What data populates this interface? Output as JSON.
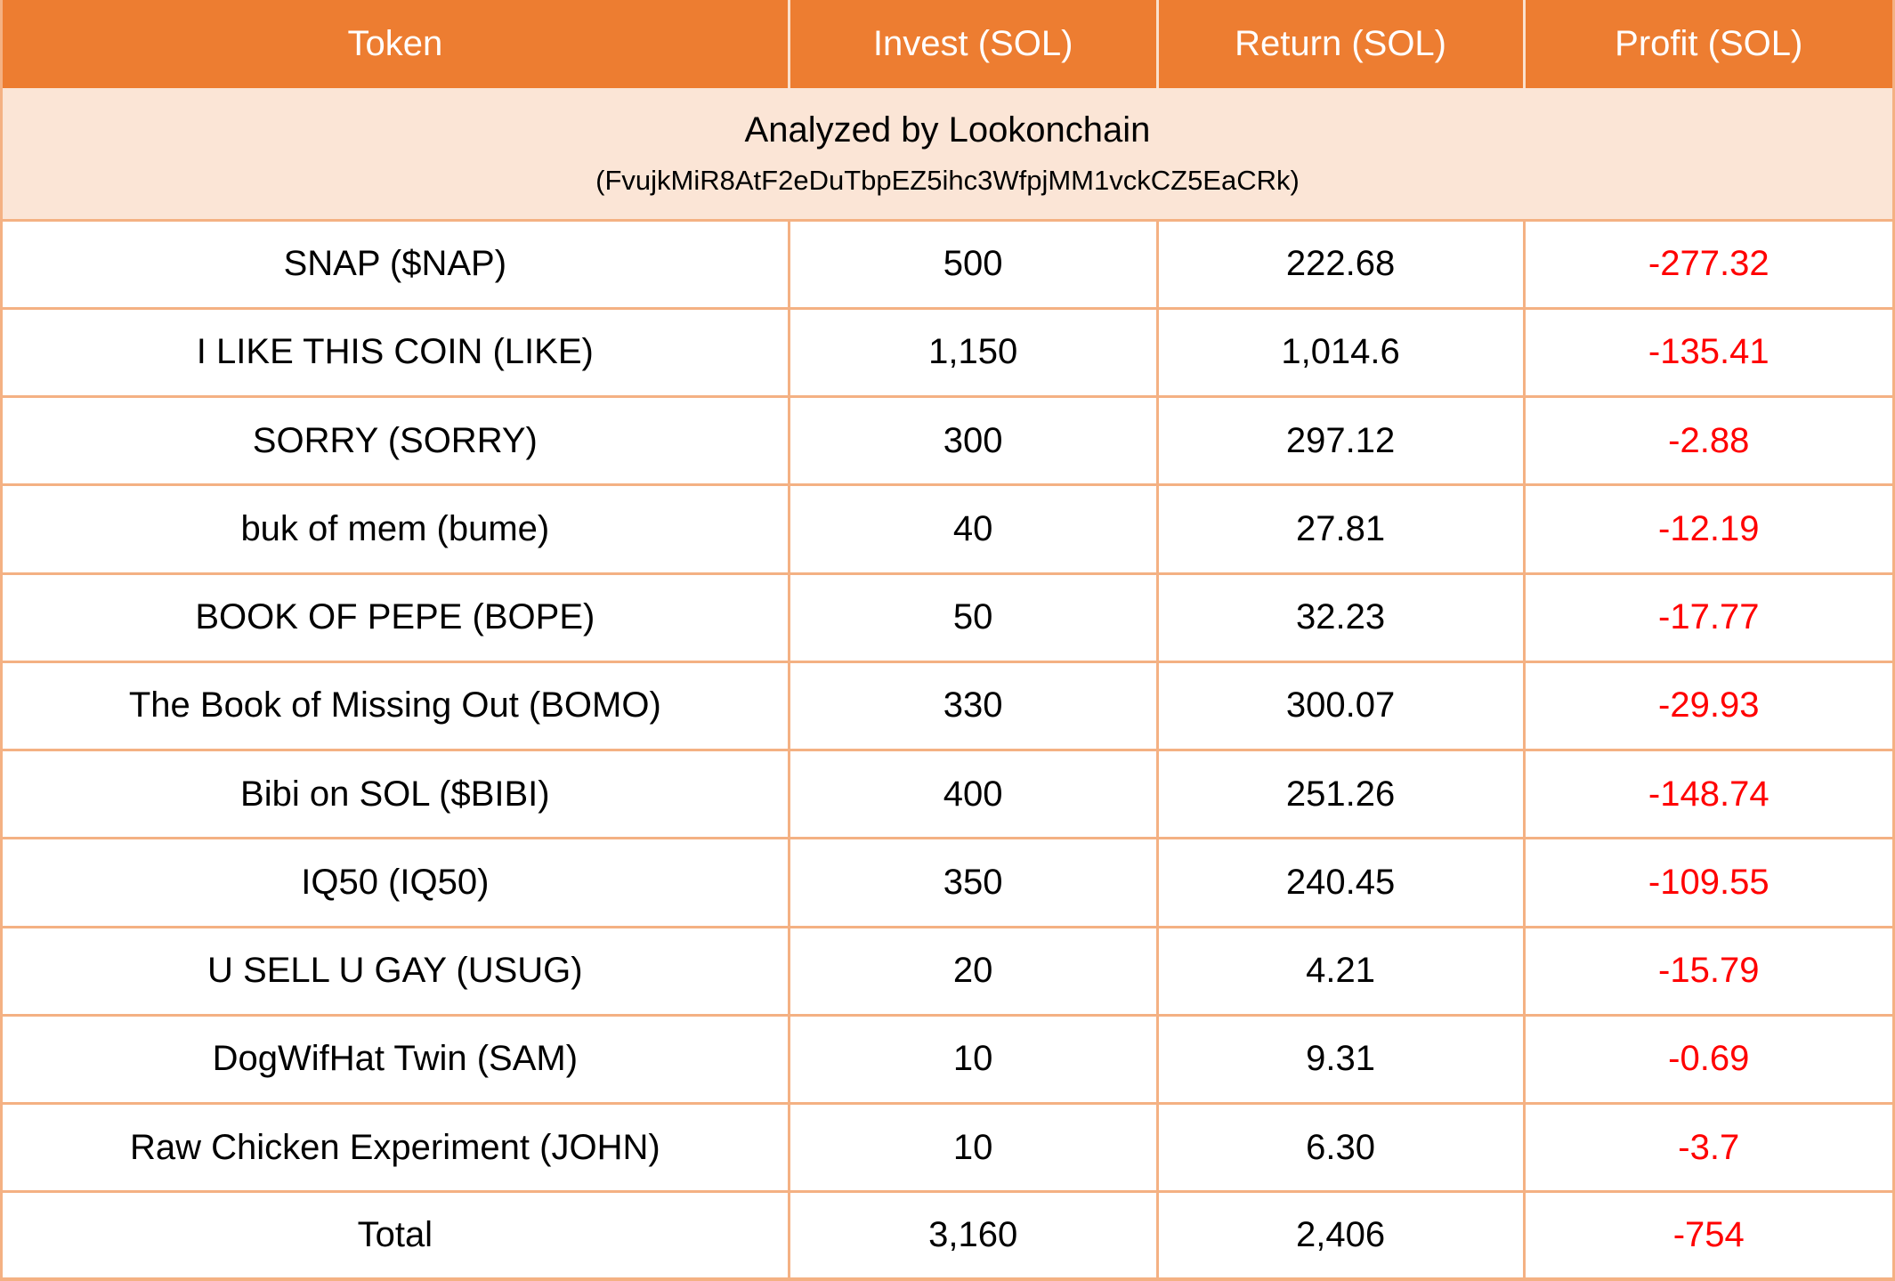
{
  "table": {
    "headers": {
      "token": "Token",
      "invest": "Invest (SOL)",
      "return": "Return (SOL)",
      "profit": "Profit (SOL)"
    },
    "banner": {
      "title": "Analyzed by Lookonchain",
      "address": "(FvujkMiR8AtF2eDuTbpEZ5ihc3WfpjMM1vckCZ5EaCRk)"
    },
    "rows": [
      {
        "token": "SNAP ($NAP)",
        "invest": "500",
        "return": "222.68",
        "profit": "-277.32"
      },
      {
        "token": "I LIKE THIS COIN (LIKE)",
        "invest": "1,150",
        "return": "1,014.6",
        "profit": "-135.41"
      },
      {
        "token": "SORRY (SORRY)",
        "invest": "300",
        "return": "297.12",
        "profit": "-2.88"
      },
      {
        "token": "buk of mem (bume)",
        "invest": "40",
        "return": "27.81",
        "profit": "-12.19"
      },
      {
        "token": "BOOK OF PEPE (BOPE)",
        "invest": "50",
        "return": "32.23",
        "profit": "-17.77"
      },
      {
        "token": "The Book of Missing Out (BOMO)",
        "invest": "330",
        "return": "300.07",
        "profit": "-29.93"
      },
      {
        "token": "Bibi on SOL ($BIBI)",
        "invest": "400",
        "return": "251.26",
        "profit": "-148.74"
      },
      {
        "token": "IQ50 (IQ50)",
        "invest": "350",
        "return": "240.45",
        "profit": "-109.55"
      },
      {
        "token": "U SELL U GAY (USUG)",
        "invest": "20",
        "return": "4.21",
        "profit": "-15.79"
      },
      {
        "token": "DogWifHat Twin (SAM)",
        "invest": "10",
        "return": "9.31",
        "profit": "-0.69"
      },
      {
        "token": "Raw Chicken Experiment (JOHN)",
        "invest": "10",
        "return": "6.30",
        "profit": "-3.7"
      }
    ],
    "total": {
      "token": "Total",
      "invest": "3,160",
      "return": "2,406",
      "profit": "-754"
    }
  },
  "colors": {
    "header_bg": "#ED7D31",
    "banner_bg": "#FBE5D6",
    "grid_border": "#F4B183",
    "loss_text": "#FF0000"
  },
  "chart_data": {
    "type": "table",
    "title": "Analyzed by Lookonchain",
    "subtitle": "(FvujkMiR8AtF2eDuTbpEZ5ihc3WfpjMM1vckCZ5EaCRk)",
    "columns": [
      "Token",
      "Invest (SOL)",
      "Return (SOL)",
      "Profit (SOL)"
    ],
    "rows": [
      [
        "SNAP ($NAP)",
        500,
        222.68,
        -277.32
      ],
      [
        "I LIKE THIS COIN (LIKE)",
        1150,
        1014.6,
        -135.41
      ],
      [
        "SORRY (SORRY)",
        300,
        297.12,
        -2.88
      ],
      [
        "buk of mem (bume)",
        40,
        27.81,
        -12.19
      ],
      [
        "BOOK OF PEPE (BOPE)",
        50,
        32.23,
        -17.77
      ],
      [
        "The Book of Missing Out (BOMO)",
        330,
        300.07,
        -29.93
      ],
      [
        "Bibi on SOL ($BIBI)",
        400,
        251.26,
        -148.74
      ],
      [
        "IQ50 (IQ50)",
        350,
        240.45,
        -109.55
      ],
      [
        "U SELL U GAY (USUG)",
        20,
        4.21,
        -15.79
      ],
      [
        "DogWifHat Twin (SAM)",
        10,
        9.31,
        -0.69
      ],
      [
        "Raw Chicken Experiment (JOHN)",
        10,
        6.3,
        -3.7
      ]
    ],
    "total_row": [
      "Total",
      3160,
      2406,
      -754
    ],
    "profit_color_rule": "negative values shown in red"
  }
}
